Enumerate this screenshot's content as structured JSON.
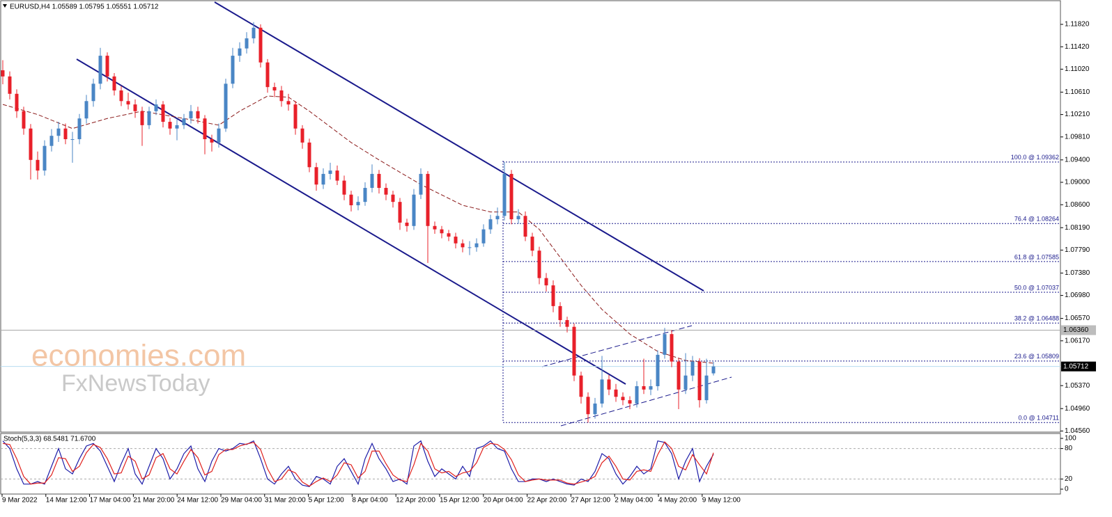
{
  "chart_data": {
    "type": "candlestick",
    "title": "EURUSD,H4  1.05589 1.05795 1.05551 1.05712",
    "up_color": "#4a86c5",
    "down_color": "#e8202a",
    "candles": {
      "open": [
        1.11,
        1.1089,
        1.1058,
        1.1027,
        1.0996,
        1.094,
        1.0921,
        1.0965,
        1.0983,
        1.0996,
        1.0977,
        1.0977,
        1.1014,
        1.1045,
        1.1076,
        1.1126,
        1.1089,
        1.1064,
        1.1045,
        1.1039,
        1.1027,
        1.1002,
        1.1027,
        1.1039,
        1.1008,
        1.0996,
        1.1002,
        1.1014,
        1.1027,
        1.1014,
        1.0977,
        1.0971,
        1.0996,
        1.1076,
        1.1126,
        1.1139,
        1.1157,
        1.1176,
        1.1114,
        1.107,
        1.1064,
        1.1045,
        1.1039,
        1.0996,
        1.0971,
        1.0927,
        1.0896,
        1.0915,
        1.0921,
        1.0903,
        1.0878,
        1.0859,
        1.0865,
        1.089,
        1.0915,
        1.089,
        1.0878,
        1.0865,
        1.0828,
        1.0822,
        1.0878,
        1.0915,
        1.0822,
        1.0816,
        1.0809,
        1.0803,
        1.0791,
        1.0784,
        1.0784,
        1.0791,
        1.0816,
        1.0834,
        1.084,
        1.0915,
        1.0834,
        1.084,
        1.0803,
        1.0778,
        1.0729,
        1.0716,
        1.0679,
        1.0654,
        1.0642,
        1.0555,
        1.0517,
        1.0486,
        1.0505,
        1.0548,
        1.053,
        1.0517,
        1.0511,
        1.0505,
        1.0536,
        1.053,
        1.0536,
        1.0592,
        1.0629,
        1.058,
        1.053,
        1.0555,
        1.058,
        1.0511,
        1.05589
      ],
      "high": [
        1.1118,
        1.1098,
        1.1066,
        1.1035,
        1.1004,
        1.0955,
        1.0975,
        1.0995,
        1.1008,
        1.1005,
        1.099,
        1.1022,
        1.1056,
        1.1085,
        1.114,
        1.1132,
        1.1095,
        1.1072,
        1.106,
        1.1048,
        1.1035,
        1.1035,
        1.1048,
        1.1045,
        1.1015,
        1.1012,
        1.1022,
        1.1038,
        1.1035,
        1.102,
        1.0985,
        1.1005,
        1.1085,
        1.114,
        1.115,
        1.1168,
        1.1186,
        1.1182,
        1.112,
        1.1078,
        1.1072,
        1.1058,
        1.1045,
        1.1002,
        1.0978,
        1.0935,
        1.0925,
        1.0935,
        1.093,
        1.0912,
        1.0885,
        1.0875,
        1.09,
        1.0932,
        1.0922,
        1.0898,
        1.0885,
        1.0872,
        1.0835,
        1.0888,
        1.0925,
        1.092,
        1.083,
        1.0822,
        1.0815,
        1.081,
        1.0798,
        1.0795,
        1.08,
        1.0825,
        1.0842,
        1.0855,
        1.0936,
        1.0922,
        1.0852,
        1.0848,
        1.081,
        1.0785,
        1.0738,
        1.0725,
        1.0686,
        1.066,
        1.0648,
        1.0562,
        1.0525,
        1.0515,
        1.059,
        1.0556,
        1.054,
        1.0525,
        1.0518,
        1.0545,
        1.0585,
        1.0548,
        1.06,
        1.064,
        1.0636,
        1.0586,
        1.0595,
        1.059,
        1.0586,
        1.0585,
        1.05795
      ],
      "low": [
        1.1075,
        1.1048,
        1.1015,
        1.0985,
        1.0905,
        1.0905,
        1.0912,
        1.0955,
        1.0972,
        1.0968,
        1.0935,
        1.0968,
        1.1005,
        1.1035,
        1.1066,
        1.108,
        1.1055,
        1.1036,
        1.103,
        1.1015,
        1.0965,
        1.0995,
        1.102,
        1.0998,
        1.0985,
        1.0975,
        1.0995,
        1.1005,
        1.1005,
        1.095,
        1.0955,
        1.0962,
        1.099,
        1.1068,
        1.1115,
        1.113,
        1.1148,
        1.1105,
        1.106,
        1.1052,
        1.1035,
        1.1028,
        1.0985,
        1.096,
        1.0918,
        1.0885,
        1.0888,
        1.0905,
        1.0895,
        1.0868,
        1.0848,
        1.085,
        1.0858,
        1.0882,
        1.088,
        1.0868,
        1.0855,
        1.0815,
        1.0812,
        1.0815,
        1.087,
        1.0756,
        1.0808,
        1.08,
        1.0795,
        1.0782,
        1.0775,
        1.077,
        1.0776,
        1.0785,
        1.0808,
        1.0825,
        1.0832,
        1.0825,
        1.0826,
        1.0795,
        1.0768,
        1.0718,
        1.0705,
        1.0668,
        1.0642,
        1.0632,
        1.0545,
        1.0505,
        1.0471,
        1.0478,
        1.0498,
        1.052,
        1.0508,
        1.0502,
        1.0495,
        1.0498,
        1.0522,
        1.052,
        1.0528,
        1.0585,
        1.057,
        1.0495,
        1.0522,
        1.0545,
        1.0498,
        1.0505,
        1.05551
      ],
      "close": [
        1.1089,
        1.1058,
        1.1027,
        1.0996,
        1.094,
        1.0921,
        1.0965,
        1.0983,
        1.0996,
        1.0977,
        1.0977,
        1.1014,
        1.1045,
        1.1076,
        1.1126,
        1.1089,
        1.1064,
        1.1045,
        1.1039,
        1.1027,
        1.1002,
        1.1027,
        1.1039,
        1.1008,
        1.0996,
        1.1002,
        1.1014,
        1.1027,
        1.1014,
        1.0977,
        1.0971,
        1.0996,
        1.1076,
        1.1126,
        1.1139,
        1.1157,
        1.1176,
        1.1114,
        1.107,
        1.1064,
        1.1045,
        1.1039,
        1.0996,
        1.0971,
        1.0927,
        1.0896,
        1.0915,
        1.0921,
        1.0903,
        1.0878,
        1.0859,
        1.0865,
        1.089,
        1.0915,
        1.089,
        1.0878,
        1.0865,
        1.0828,
        1.0822,
        1.0878,
        1.0915,
        1.0822,
        1.0816,
        1.0809,
        1.0803,
        1.0791,
        1.0784,
        1.0784,
        1.0791,
        1.0816,
        1.0834,
        1.084,
        1.0915,
        1.0834,
        1.084,
        1.0803,
        1.0778,
        1.0729,
        1.0716,
        1.0679,
        1.0654,
        1.0642,
        1.0555,
        1.0517,
        1.0486,
        1.0505,
        1.0548,
        1.053,
        1.0517,
        1.0511,
        1.0505,
        1.0536,
        1.053,
        1.0536,
        1.0592,
        1.0629,
        1.058,
        1.053,
        1.0555,
        1.058,
        1.0511,
        1.0555,
        1.05712
      ]
    },
    "moving_average": {
      "color": "#8b1a1a",
      "x": [
        0,
        5,
        10,
        15,
        20,
        26,
        31,
        34,
        38,
        41,
        44,
        50,
        54,
        60,
        66,
        70,
        74,
        77,
        80,
        83,
        86,
        90,
        94,
        98,
        102
      ],
      "values": [
        1.1039,
        1.1021,
        1.0996,
        1.1014,
        1.1027,
        1.1014,
        1.1002,
        1.1027,
        1.1054,
        1.1052,
        1.1027,
        1.0971,
        1.094,
        1.0896,
        1.0859,
        1.0847,
        1.0847,
        1.0816,
        1.0766,
        1.0716,
        1.0673,
        1.0629,
        1.0598,
        1.0582,
        1.0577
      ]
    },
    "ylim": [
      1.0454,
      1.1223
    ],
    "yticks": [
      {
        "value": 1.1182,
        "label": "1.11820"
      },
      {
        "value": 1.1142,
        "label": "1.11420"
      },
      {
        "value": 1.1102,
        "label": "1.11020"
      },
      {
        "value": 1.1061,
        "label": "1.10610"
      },
      {
        "value": 1.1021,
        "label": "1.10210"
      },
      {
        "value": 1.0981,
        "label": "1.09810"
      },
      {
        "value": 1.094,
        "label": "1.09400"
      },
      {
        "value": 1.09,
        "label": "1.09000"
      },
      {
        "value": 1.086,
        "label": "1.08600"
      },
      {
        "value": 1.0819,
        "label": "1.08190"
      },
      {
        "value": 1.0779,
        "label": "1.07790"
      },
      {
        "value": 1.0738,
        "label": "1.07380"
      },
      {
        "value": 1.0698,
        "label": "1.06980"
      },
      {
        "value": 1.0657,
        "label": "1.06570"
      },
      {
        "value": 1.0617,
        "label": "1.06170"
      },
      {
        "value": 1.0537,
        "label": "1.05370"
      },
      {
        "value": 1.0496,
        "label": "1.04960"
      },
      {
        "value": 1.0456,
        "label": "1.04560"
      }
    ],
    "x_labels": [
      "9 Mar 2022",
      "14 Mar 12:00",
      "17 Mar 04:00",
      "21 Mar 20:00",
      "24 Mar 12:00",
      "29 Mar 04:00",
      "31 Mar 20:00",
      "5 Apr 12:00",
      "8 Apr 04:00",
      "12 Apr 20:00",
      "15 Apr 12:00",
      "20 Apr 04:00",
      "22 Apr 20:00",
      "27 Apr 12:00",
      "2 May 04:00",
      "4 May 20:00",
      "9 May 12:00"
    ],
    "fibonacci": [
      {
        "value": 1.09362,
        "label": "100.0 @ 1.09362"
      },
      {
        "value": 1.08264,
        "label": "76.4 @ 1.08264"
      },
      {
        "value": 1.07585,
        "label": "61.8 @ 1.07585"
      },
      {
        "value": 1.07037,
        "label": "50.0 @ 1.07037"
      },
      {
        "value": 1.06488,
        "label": "38.2 @ 1.06488"
      },
      {
        "value": 1.05809,
        "label": "23.6 @ 1.05809"
      },
      {
        "value": 1.04711,
        "label": "0.0 @ 1.04711"
      }
    ],
    "marked_level": {
      "value": 1.0636,
      "label": "1.06360"
    },
    "bid": 1.05712,
    "watermark": {
      "line1": "economies.com",
      "line2": "FxNewsToday"
    },
    "stochastic": {
      "title": "Stoch(5,3,3) 68.5481 71.6700",
      "ylim": [
        0,
        100
      ],
      "yticks": [
        100,
        80,
        20,
        0
      ],
      "levels": [
        80,
        20
      ],
      "series": [
        {
          "color": "#1c1ca8",
          "values": [
            95,
            80,
            40,
            10,
            10,
            15,
            10,
            45,
            80,
            40,
            30,
            60,
            85,
            90,
            75,
            45,
            15,
            50,
            80,
            30,
            10,
            45,
            80,
            60,
            20,
            40,
            70,
            85,
            40,
            15,
            55,
            80,
            75,
            80,
            90,
            88,
            95,
            60,
            20,
            10,
            30,
            45,
            20,
            8,
            5,
            25,
            20,
            10,
            45,
            60,
            35,
            10,
            60,
            90,
            60,
            40,
            15,
            20,
            10,
            85,
            95,
            55,
            25,
            40,
            30,
            20,
            45,
            25,
            80,
            85,
            95,
            80,
            75,
            40,
            15,
            15,
            20,
            20,
            15,
            20,
            15,
            10,
            8,
            20,
            15,
            35,
            70,
            60,
            30,
            10,
            25,
            45,
            30,
            40,
            95,
            92,
            70,
            20,
            55,
            80,
            15,
            45,
            68.5481
          ]
        },
        {
          "color": "#e0201c",
          "values": [
            90,
            88,
            60,
            25,
            10,
            12,
            12,
            28,
            62,
            60,
            35,
            45,
            72,
            88,
            82,
            60,
            30,
            32,
            65,
            55,
            20,
            28,
            62,
            70,
            40,
            30,
            55,
            78,
            62,
            28,
            35,
            68,
            78,
            78,
            85,
            89,
            92,
            78,
            40,
            15,
            20,
            38,
            32,
            14,
            6,
            15,
            22,
            15,
            28,
            52,
            48,
            22,
            35,
            75,
            75,
            50,
            28,
            18,
            15,
            48,
            90,
            75,
            40,
            32,
            35,
            25,
            32,
            35,
            52,
            82,
            90,
            88,
            78,
            58,
            28,
            15,
            18,
            20,
            18,
            18,
            18,
            12,
            10,
            14,
            18,
            25,
            52,
            65,
            45,
            20,
            18,
            35,
            38,
            35,
            68,
            93,
            80,
            45,
            38,
            68,
            48,
            30,
            71.67
          ]
        }
      ]
    }
  }
}
